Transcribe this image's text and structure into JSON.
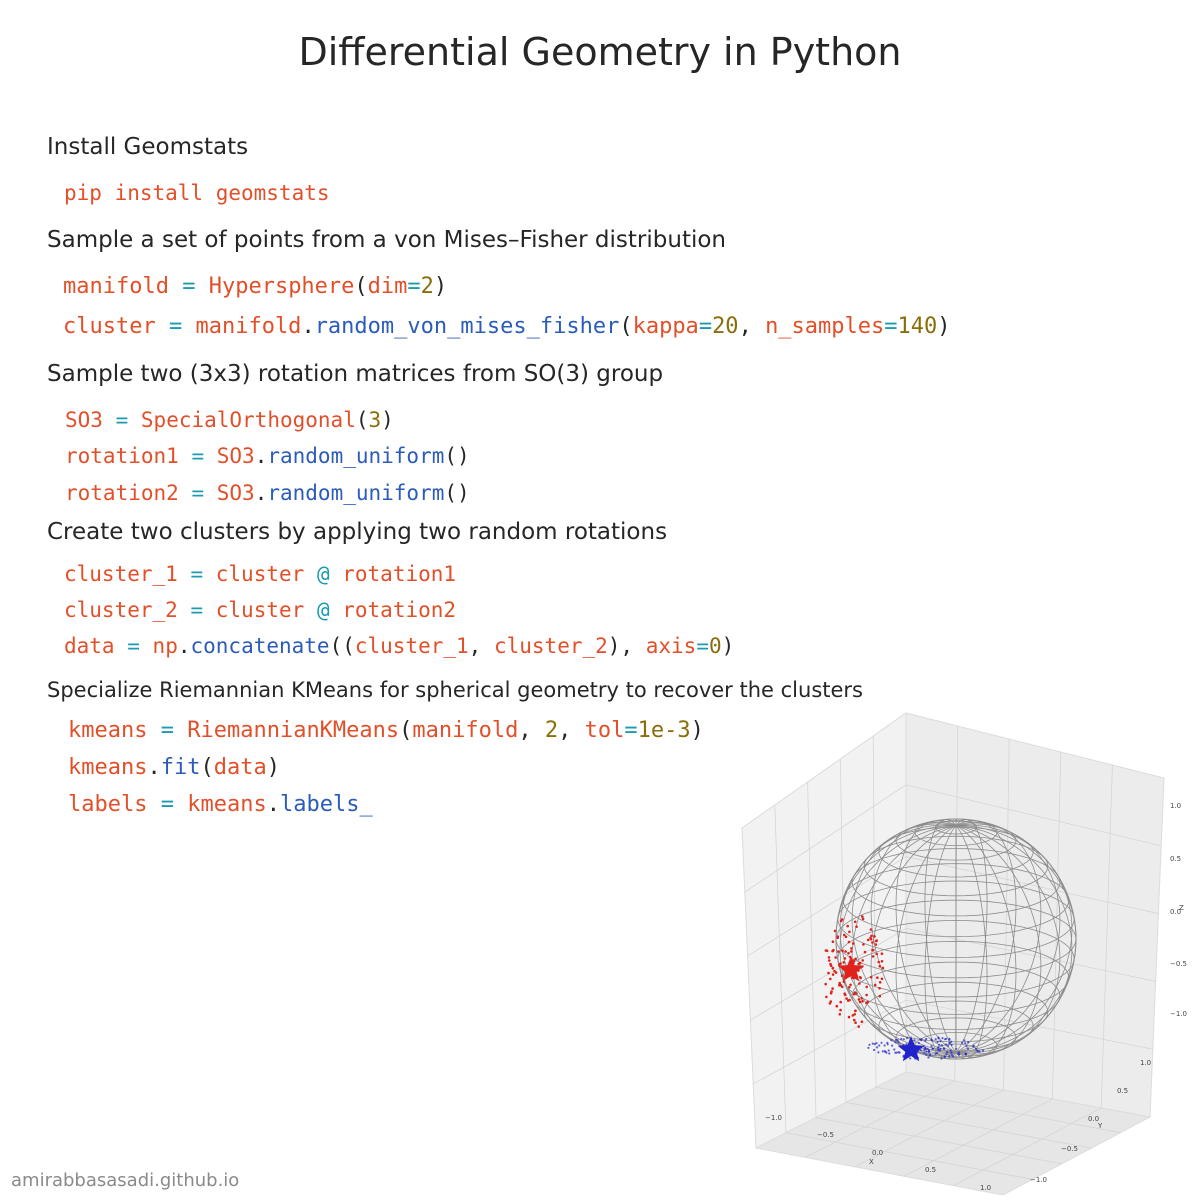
{
  "title": "Differential Geometry in Python",
  "sections": {
    "install": "Install Geomstats",
    "sample_vmf": "Sample a set of points from a von Mises–Fisher distribution",
    "sample_so3": "Sample two (3x3) rotation matrices from SO(3) group",
    "clusters": "Create two clusters by applying two random rotations",
    "kmeans": "Specialize Riemannian KMeans for spherical geometry to recover the clusters"
  },
  "code": {
    "pip": {
      "text": "pip install geomstats"
    },
    "manifold": {
      "var": "manifold",
      "eq": "=",
      "cls": "Hypersphere",
      "lp": "(",
      "kw": "dim",
      "kweq": "=",
      "num": "2",
      "rp": ")"
    },
    "cluster": {
      "var": "cluster",
      "eq": "=",
      "obj": "manifold",
      "dot": ".",
      "method": "random_von_mises_fisher",
      "lp": "(",
      "kw1": "kappa",
      "kweq1": "=",
      "num1": "20",
      "comma": ",",
      "kw2": "n_samples",
      "kweq2": "=",
      "num2": "140",
      "rp": ")"
    },
    "so3": {
      "var": "SO3",
      "eq": "=",
      "cls": "SpecialOrthogonal",
      "lp": "(",
      "num": "3",
      "rp": ")"
    },
    "rot1": {
      "var": "rotation1",
      "eq": "=",
      "obj": "SO3",
      "dot": ".",
      "method": "random_uniform",
      "parens": "()"
    },
    "rot2": {
      "var": "rotation2",
      "eq": "=",
      "obj": "SO3",
      "dot": ".",
      "method": "random_uniform",
      "parens": "()"
    },
    "c1": {
      "var": "cluster_1",
      "eq": "=",
      "a": "cluster",
      "op": "@",
      "b": "rotation1"
    },
    "c2": {
      "var": "cluster_2",
      "eq": "=",
      "a": "cluster",
      "op": "@",
      "b": "rotation2"
    },
    "data": {
      "var": "data",
      "eq": "=",
      "obj": "np",
      "dot": ".",
      "method": "concatenate",
      "lp": "((",
      "a": "cluster_1",
      "comma": ",",
      "b": "cluster_2",
      "mid": "),",
      "kw": "axis",
      "kweq": "=",
      "num": "0",
      "rp": ")"
    },
    "km": {
      "var": "kmeans",
      "eq": "=",
      "cls": "RiemannianKMeans",
      "lp": "(",
      "arg": "manifold",
      "comma1": ",",
      "num": "2",
      "comma2": ",",
      "kw": "tol",
      "kweq": "=",
      "tol": "1e-3",
      "rp": ")"
    },
    "fit": {
      "obj": "kmeans",
      "dot": ".",
      "method": "fit",
      "lp": "(",
      "arg": "data",
      "rp": ")"
    },
    "labels": {
      "var": "labels",
      "eq": "=",
      "obj": "kmeans",
      "dot": ".",
      "attr": "labels_"
    }
  },
  "plot": {
    "x_ticks": [
      "−1.0",
      "−0.5",
      "0.0",
      "0.5",
      "1.0"
    ],
    "y_ticks": [
      "−1.0",
      "−0.5",
      "0.0",
      "0.5",
      "1.0"
    ],
    "z_ticks": [
      "1.0",
      "0.5",
      "0.0",
      "−0.5",
      "−1.0"
    ],
    "x_label": "X",
    "y_label": "Y",
    "z_label": "Z",
    "cluster_colors": [
      "#e0221c",
      "#2222cc"
    ],
    "wire_color": "#8c8c8c"
  },
  "footer": "amirabbasasadi.github.io"
}
